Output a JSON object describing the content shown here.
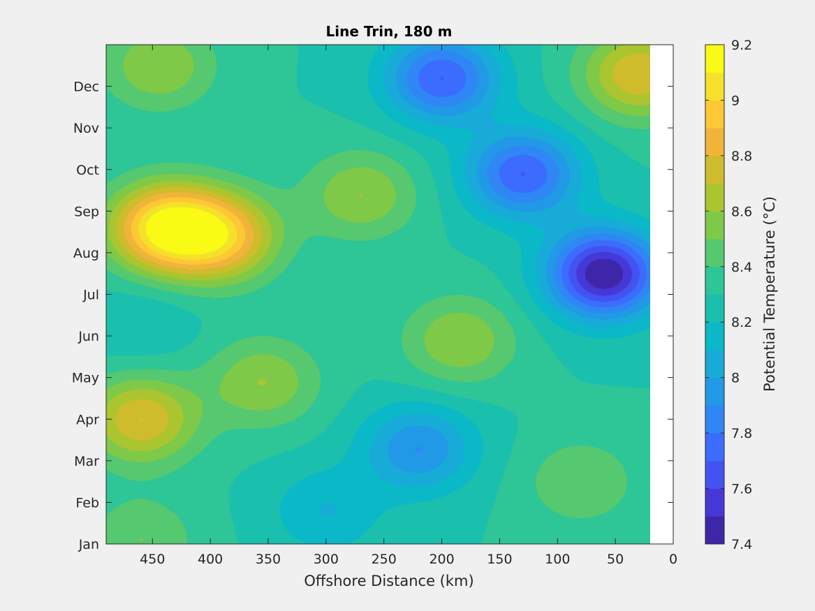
{
  "chart_data": {
    "type": "contour",
    "title": "Line Trin, 180 m",
    "xlabel": "Offshore Distance (km)",
    "ylabel": "",
    "x_reversed": true,
    "xlim": [
      0,
      490
    ],
    "x_ticks": [
      450,
      400,
      350,
      300,
      250,
      200,
      150,
      100,
      50,
      0
    ],
    "y_ticks": [
      "Jan",
      "Feb",
      "Mar",
      "Apr",
      "May",
      "Jun",
      "Jul",
      "Aug",
      "Sep",
      "Oct",
      "Nov",
      "Dec"
    ],
    "data_x_range_km": [
      20,
      490
    ],
    "colorbar": {
      "label": "Potential Temperature (°C)",
      "range": [
        7.4,
        9.2
      ],
      "step": 0.1,
      "tick_labels": [
        "7.4",
        "7.6",
        "7.8",
        "8",
        "8.2",
        "8.4",
        "8.6",
        "8.8",
        "9",
        "9.2"
      ],
      "colors": [
        "#3e26a8",
        "#4538d7",
        "#4353f2",
        "#3b6cfd",
        "#2f86f4",
        "#2199e7",
        "#18abd8",
        "#0ab8c7",
        "#1abfae",
        "#2ec597",
        "#55c870",
        "#7fc949",
        "#aac52f",
        "#cfbc2c",
        "#f1b43a",
        "#fdc834",
        "#f5e12b",
        "#f9fb15"
      ]
    },
    "features": [
      {
        "x_km": 440,
        "month": 7.6,
        "value": 9.1
      },
      {
        "x_km": 390,
        "month": 7.4,
        "value": 8.9
      },
      {
        "x_km": 445,
        "month": 11.5,
        "value": 8.6
      },
      {
        "x_km": 30,
        "month": 11.3,
        "value": 8.8
      },
      {
        "x_km": 270,
        "month": 8.4,
        "value": 8.6
      },
      {
        "x_km": 200,
        "month": 11.2,
        "value": 7.7
      },
      {
        "x_km": 130,
        "month": 8.9,
        "value": 7.7
      },
      {
        "x_km": 60,
        "month": 6.5,
        "value": 7.4
      },
      {
        "x_km": 185,
        "month": 4.9,
        "value": 8.6
      },
      {
        "x_km": 355,
        "month": 3.9,
        "value": 8.6
      },
      {
        "x_km": 460,
        "month": 3.0,
        "value": 8.8
      },
      {
        "x_km": 460,
        "month": 5.3,
        "value": 8.2
      },
      {
        "x_km": 80,
        "month": 1.5,
        "value": 8.5
      },
      {
        "x_km": 220,
        "month": 2.3,
        "value": 7.9
      },
      {
        "x_km": 300,
        "month": 0.8,
        "value": 8.1
      },
      {
        "x_km": 460,
        "month": 0.1,
        "value": 8.5
      }
    ]
  }
}
